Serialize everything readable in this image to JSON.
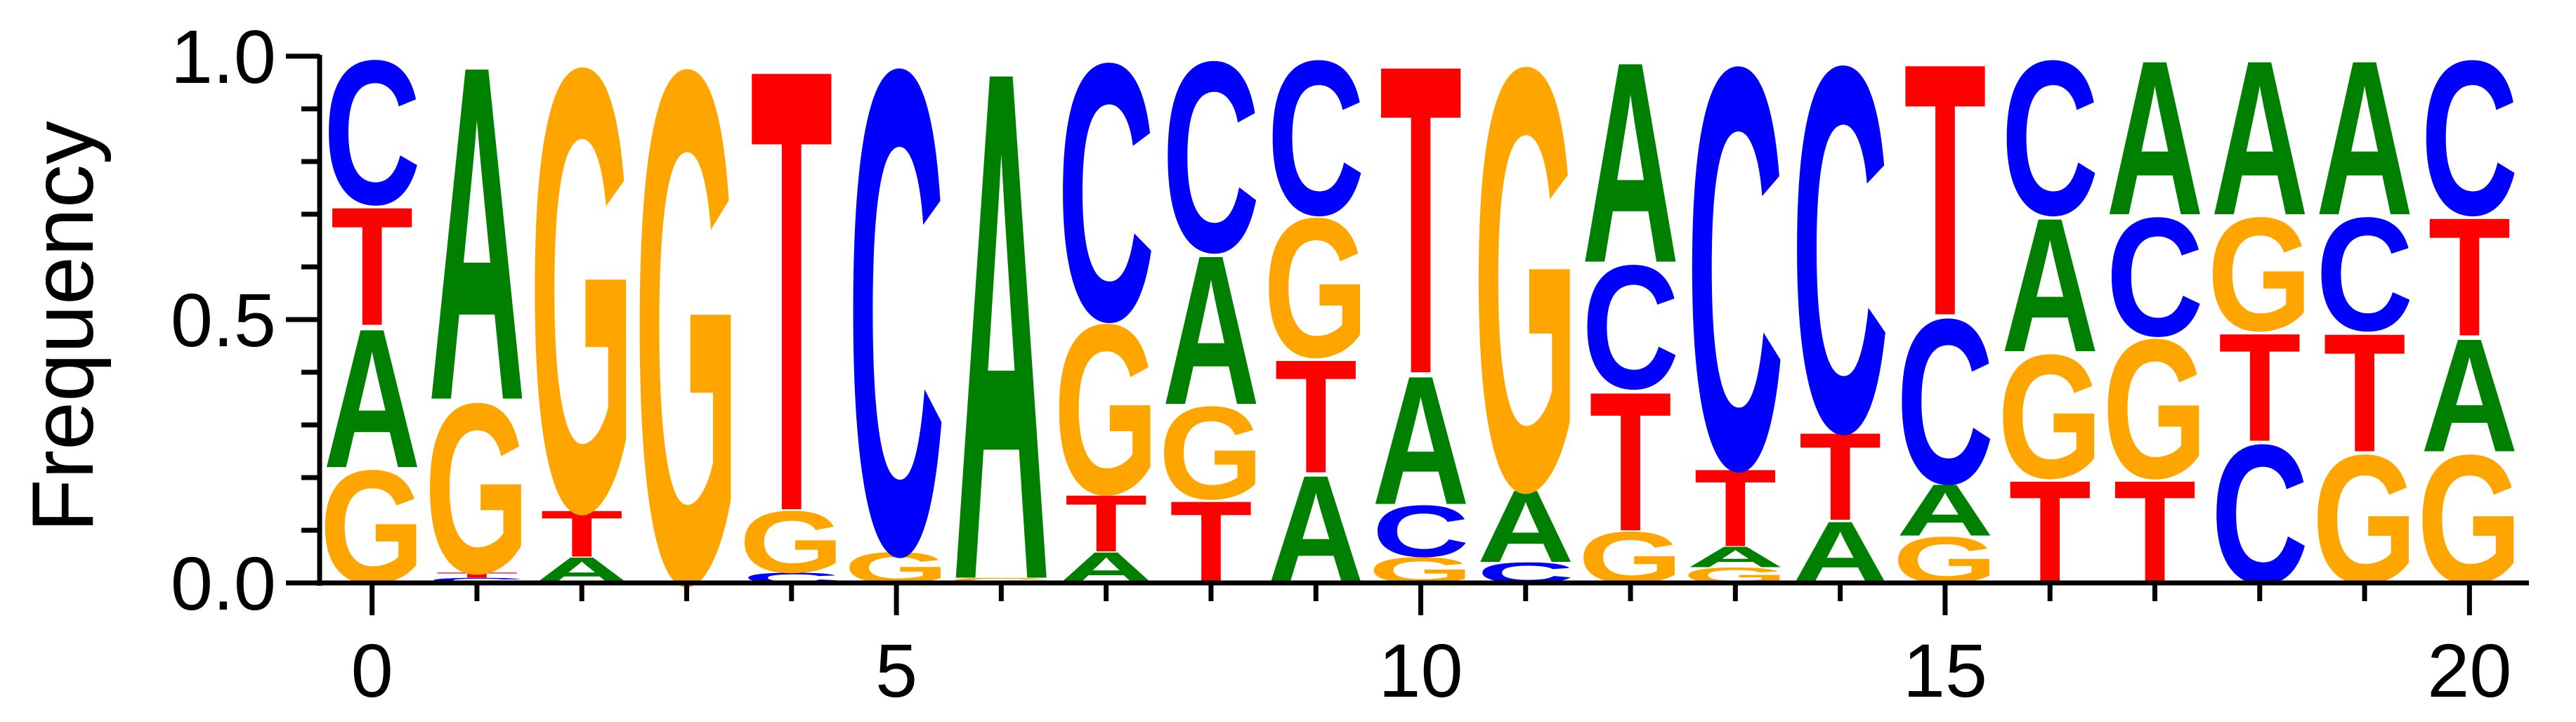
{
  "chart_data": {
    "type": "sequence_logo",
    "ylabel": "Frequency",
    "ylim": [
      0,
      1.0
    ],
    "xlim": [
      -0.5,
      20.5
    ],
    "yticks": [
      "0.0",
      "0.5",
      "1.0"
    ],
    "xticks": [
      "0",
      "5",
      "10",
      "15",
      "20"
    ],
    "colors": {
      "A": "#008000",
      "C": "#0000ff",
      "G": "#ffa500",
      "T": "#ff0000"
    },
    "positions": [
      {
        "pos": 0,
        "stack": [
          [
            "G",
            0.22
          ],
          [
            "A",
            0.27
          ],
          [
            "T",
            0.23
          ],
          [
            "C",
            0.28
          ]
        ]
      },
      {
        "pos": 1,
        "stack": [
          [
            "C",
            0.01
          ],
          [
            "T",
            0.01
          ],
          [
            "G",
            0.33
          ],
          [
            "A",
            0.65
          ]
        ]
      },
      {
        "pos": 2,
        "stack": [
          [
            "A",
            0.05
          ],
          [
            "T",
            0.09
          ],
          [
            "G",
            0.86
          ]
        ]
      },
      {
        "pos": 3,
        "stack": [
          [
            "A",
            0.005
          ],
          [
            "G",
            0.995
          ]
        ]
      },
      {
        "pos": 4,
        "stack": [
          [
            "C",
            0.02
          ],
          [
            "G",
            0.12
          ],
          [
            "T",
            0.86
          ]
        ]
      },
      {
        "pos": 5,
        "stack": [
          [
            "G",
            0.06
          ],
          [
            "C",
            0.94
          ]
        ]
      },
      {
        "pos": 6,
        "stack": [
          [
            "G",
            0.01
          ],
          [
            "A",
            0.99
          ]
        ]
      },
      {
        "pos": 7,
        "stack": [
          [
            "A",
            0.06
          ],
          [
            "T",
            0.11
          ],
          [
            "G",
            0.33
          ],
          [
            "C",
            0.5
          ]
        ]
      },
      {
        "pos": 8,
        "stack": [
          [
            "T",
            0.16
          ],
          [
            "G",
            0.18
          ],
          [
            "A",
            0.29
          ],
          [
            "C",
            0.37
          ]
        ]
      },
      {
        "pos": 9,
        "stack": [
          [
            "A",
            0.21
          ],
          [
            "T",
            0.22
          ],
          [
            "G",
            0.27
          ],
          [
            "C",
            0.3
          ]
        ]
      },
      {
        "pos": 10,
        "stack": [
          [
            "G",
            0.05
          ],
          [
            "C",
            0.1
          ],
          [
            "A",
            0.25
          ],
          [
            "T",
            0.6
          ]
        ]
      },
      {
        "pos": 11,
        "stack": [
          [
            "C",
            0.04
          ],
          [
            "A",
            0.14
          ],
          [
            "G",
            0.82
          ]
        ]
      },
      {
        "pos": 12,
        "stack": [
          [
            "G",
            0.1
          ],
          [
            "T",
            0.27
          ],
          [
            "C",
            0.24
          ],
          [
            "A",
            0.39
          ]
        ]
      },
      {
        "pos": 13,
        "stack": [
          [
            "G",
            0.03
          ],
          [
            "A",
            0.04
          ],
          [
            "T",
            0.15
          ],
          [
            "C",
            0.78
          ]
        ]
      },
      {
        "pos": 14,
        "stack": [
          [
            "A",
            0.12
          ],
          [
            "T",
            0.17
          ],
          [
            "C",
            0.71
          ]
        ]
      },
      {
        "pos": 15,
        "stack": [
          [
            "G",
            0.09
          ],
          [
            "A",
            0.1
          ],
          [
            "C",
            0.32
          ],
          [
            "T",
            0.49
          ]
        ]
      },
      {
        "pos": 16,
        "stack": [
          [
            "T",
            0.2
          ],
          [
            "G",
            0.24
          ],
          [
            "A",
            0.26
          ],
          [
            "C",
            0.3
          ]
        ]
      },
      {
        "pos": 17,
        "stack": [
          [
            "T",
            0.2
          ],
          [
            "G",
            0.27
          ],
          [
            "C",
            0.23
          ],
          [
            "A",
            0.3
          ]
        ]
      },
      {
        "pos": 18,
        "stack": [
          [
            "C",
            0.27
          ],
          [
            "T",
            0.21
          ],
          [
            "G",
            0.22
          ],
          [
            "A",
            0.3
          ]
        ]
      },
      {
        "pos": 19,
        "stack": [
          [
            "G",
            0.25
          ],
          [
            "T",
            0.23
          ],
          [
            "C",
            0.22
          ],
          [
            "A",
            0.3
          ]
        ]
      },
      {
        "pos": 20,
        "stack": [
          [
            "G",
            0.25
          ],
          [
            "A",
            0.22
          ],
          [
            "T",
            0.23
          ],
          [
            "C",
            0.3
          ]
        ]
      }
    ]
  }
}
